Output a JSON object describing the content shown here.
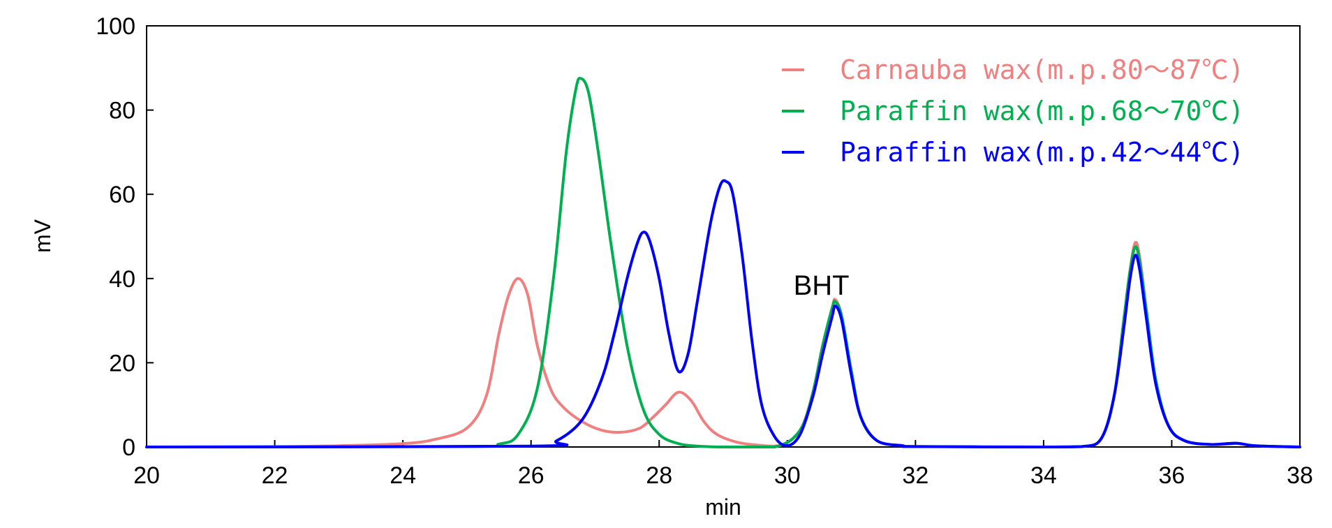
{
  "chart_data": {
    "type": "line",
    "title": "",
    "xlabel": "min",
    "ylabel": "mV",
    "xlim": [
      20,
      38
    ],
    "ylim": [
      0,
      100
    ],
    "xticks": [
      20,
      22,
      24,
      26,
      28,
      30,
      32,
      34,
      36,
      38
    ],
    "yticks": [
      0,
      20,
      40,
      60,
      80,
      100
    ],
    "legend_position": "top-right",
    "annotations": [
      {
        "text": "BHT",
        "x": 30.75,
        "y": 38.5
      }
    ],
    "series": [
      {
        "name": "Carnauba wax(m.p.80～87℃)",
        "color": "#f08080",
        "x": [
          20,
          22,
          23,
          24,
          24.5,
          25,
          25.3,
          25.5,
          25.65,
          25.8,
          25.95,
          26.1,
          26.3,
          26.5,
          26.8,
          27.1,
          27.4,
          27.7,
          27.9,
          28.1,
          28.3,
          28.5,
          28.7,
          28.9,
          29.2,
          29.5,
          29.9,
          30.2,
          30.4,
          30.55,
          30.7,
          30.75,
          30.85,
          31.0,
          31.15,
          31.4,
          31.8,
          32,
          34,
          34.6,
          34.9,
          35.1,
          35.25,
          35.35,
          35.43,
          35.5,
          35.6,
          35.75,
          35.95,
          36.2,
          36.6,
          36.9,
          37.0,
          37.1,
          37.3,
          38
        ],
        "y": [
          0,
          0.1,
          0.3,
          0.8,
          1.8,
          4.5,
          12,
          27,
          36,
          40,
          36,
          24,
          14,
          9.5,
          6,
          4,
          3.5,
          4.5,
          7,
          10,
          13,
          11,
          6,
          3,
          1.2,
          0.5,
          0.4,
          4,
          13,
          24,
          33,
          35,
          31,
          18,
          7,
          1.5,
          0.3,
          0.1,
          0,
          0.1,
          2,
          12,
          30,
          42,
          48.5,
          45,
          33,
          16,
          5,
          1.5,
          0.6,
          0.7,
          0.9,
          0.7,
          0.3,
          0
        ]
      },
      {
        "name": "Paraffin wax(m.p.68～70℃)",
        "color": "#00b050",
        "x": [
          20,
          25,
          25.5,
          25.8,
          26.1,
          26.35,
          26.55,
          26.7,
          26.78,
          26.9,
          27.05,
          27.25,
          27.5,
          27.75,
          28.0,
          28.3,
          28.6,
          29.0,
          29.8,
          30.2,
          30.4,
          30.55,
          30.7,
          30.75,
          30.85,
          31.0,
          31.15,
          31.4,
          31.8,
          32,
          34,
          34.6,
          34.9,
          35.1,
          35.25,
          35.35,
          35.43,
          35.5,
          35.6,
          35.75,
          35.95,
          36.2,
          36.6,
          37.0,
          37.3,
          38
        ],
        "y": [
          0,
          0.1,
          0.7,
          3,
          14,
          40,
          70,
          85,
          87.5,
          84,
          70,
          48,
          24,
          9,
          3,
          0.8,
          0.2,
          0,
          0,
          4,
          13,
          24,
          33,
          34.5,
          31,
          18,
          7,
          1.5,
          0.3,
          0.1,
          0,
          0.1,
          2,
          12,
          30,
          42,
          47.5,
          44,
          33,
          16,
          5,
          1.5,
          0.6,
          0.9,
          0.3,
          0
        ]
      },
      {
        "name": "Paraffin wax(m.p.42～44℃)",
        "color": "#0000ff",
        "x": [
          20,
          26,
          26.4,
          26.8,
          27.1,
          27.3,
          27.5,
          27.65,
          27.75,
          27.85,
          28.0,
          28.15,
          28.3,
          28.45,
          28.6,
          28.8,
          28.95,
          29.05,
          29.15,
          29.3,
          29.45,
          29.6,
          29.8,
          30.0,
          30.2,
          30.4,
          30.55,
          30.7,
          30.75,
          30.85,
          31.0,
          31.15,
          31.4,
          31.8,
          32,
          34,
          34.6,
          34.9,
          35.1,
          35.25,
          35.35,
          35.43,
          35.5,
          35.6,
          35.75,
          35.95,
          36.2,
          36.6,
          37.0,
          37.3,
          38
        ],
        "y": [
          0,
          0.2,
          1.5,
          6.5,
          16,
          27,
          40,
          48,
          51,
          49,
          40,
          27,
          18,
          22,
          35,
          53,
          62,
          63,
          60,
          45,
          25,
          10,
          2.5,
          0.3,
          3,
          12,
          22,
          31,
          33.5,
          30,
          17,
          7,
          1.5,
          0.3,
          0.1,
          0,
          0.1,
          2,
          12,
          28,
          40,
          45.5,
          42,
          31,
          15,
          5,
          1.5,
          0.6,
          0.9,
          0.3,
          0
        ]
      }
    ]
  }
}
